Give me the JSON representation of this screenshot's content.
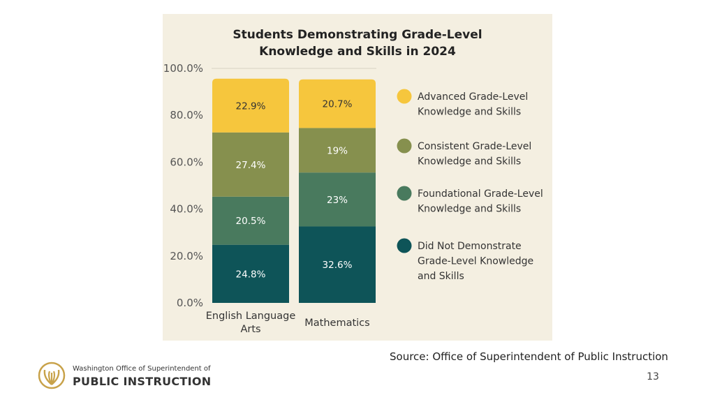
{
  "chart_data": {
    "type": "bar",
    "stacked": true,
    "title_lines": [
      "Students Demonstrating Grade-Level",
      "Knowledge and Skills in 2024"
    ],
    "categories": [
      [
        "English Language",
        "Arts"
      ],
      [
        "Mathematics"
      ]
    ],
    "ylim": [
      0,
      100
    ],
    "yticks": [
      "0.0%",
      "20.0%",
      "40.0%",
      "60.0%",
      "80.0%",
      "100.0%"
    ],
    "grid": false,
    "legend_position": "right",
    "series": [
      {
        "name_lines": [
          "Did Not Demonstrate",
          "Grade-Level Knowledge",
          "and Skills"
        ],
        "color": "#0e5458",
        "label_color": "#ffffff",
        "values": [
          24.8,
          32.6
        ],
        "labels": [
          "24.8%",
          "32.6%"
        ]
      },
      {
        "name_lines": [
          "Foundational Grade-Level",
          "Knowledge and Skills"
        ],
        "color": "#497a5e",
        "label_color": "#ffffff",
        "values": [
          20.5,
          23
        ],
        "labels": [
          "20.5%",
          "23%"
        ]
      },
      {
        "name_lines": [
          "Consistent Grade-Level",
          "Knowledge and Skills"
        ],
        "color": "#86904e",
        "label_color": "#ffffff",
        "values": [
          27.4,
          19
        ],
        "labels": [
          "27.4%",
          "19%"
        ]
      },
      {
        "name_lines": [
          "Advanced Grade-Level",
          "Knowledge and Skills"
        ],
        "color": "#f6c63d",
        "label_color": "#333333",
        "values": [
          22.9,
          20.7
        ],
        "labels": [
          "22.9%",
          "20.7%"
        ]
      }
    ]
  },
  "footer": {
    "source": "Source: Office of Superintendent of Public Instruction",
    "page_number": "13"
  },
  "logo": {
    "line1": "Washington Office of Superintendent of",
    "line2": "PUBLIC INSTRUCTION",
    "color": "#c8a24a"
  }
}
